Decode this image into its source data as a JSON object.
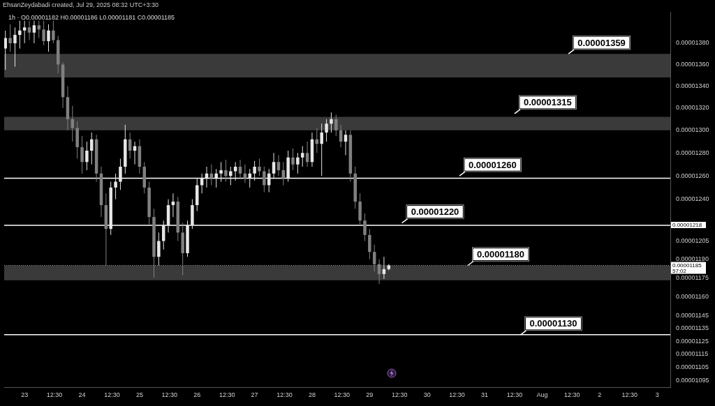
{
  "chart_data": {
    "type": "candlestick",
    "title": "EhsanZeydabadi created, Jul 29, 2025 08:32 UTC+3:30",
    "subtitle": "1h · O0.00001182 H0.00001186 L0.00001181 C0.00001185",
    "x": [
      "2025-07-22T16:00",
      "2025-07-22T18:00",
      "2025-07-22T20:00",
      "2025-07-22T22:00",
      "2025-07-23T00:00",
      "2025-07-23T02:00",
      "2025-07-23T04:00",
      "2025-07-23T06:00",
      "2025-07-23T08:00",
      "2025-07-23T10:00",
      "2025-07-23T12:00",
      "2025-07-23T14:00",
      "2025-07-23T16:00",
      "2025-07-23T18:00",
      "2025-07-23T20:00",
      "2025-07-23T22:00",
      "2025-07-24T00:00",
      "2025-07-24T02:00",
      "2025-07-24T04:00",
      "2025-07-24T06:00",
      "2025-07-24T08:00",
      "2025-07-24T10:00",
      "2025-07-24T12:00",
      "2025-07-24T14:00",
      "2025-07-24T16:00",
      "2025-07-24T18:00",
      "2025-07-24T20:00",
      "2025-07-24T22:00",
      "2025-07-25T00:00",
      "2025-07-25T02:00",
      "2025-07-25T04:00",
      "2025-07-25T06:00",
      "2025-07-25T08:00",
      "2025-07-25T10:00",
      "2025-07-25T12:00",
      "2025-07-25T14:00",
      "2025-07-25T16:00",
      "2025-07-25T18:00",
      "2025-07-25T20:00",
      "2025-07-25T22:00",
      "2025-07-26T00:00",
      "2025-07-26T02:00",
      "2025-07-26T04:00",
      "2025-07-26T06:00",
      "2025-07-26T08:00",
      "2025-07-26T10:00",
      "2025-07-26T12:00",
      "2025-07-26T14:00",
      "2025-07-26T16:00",
      "2025-07-26T18:00",
      "2025-07-26T20:00",
      "2025-07-26T22:00",
      "2025-07-27T00:00",
      "2025-07-27T02:00",
      "2025-07-27T04:00",
      "2025-07-27T06:00",
      "2025-07-27T08:00",
      "2025-07-27T10:00",
      "2025-07-27T12:00",
      "2025-07-27T14:00",
      "2025-07-27T16:00",
      "2025-07-27T18:00",
      "2025-07-27T20:00",
      "2025-07-27T22:00",
      "2025-07-28T00:00",
      "2025-07-28T02:00",
      "2025-07-28T04:00",
      "2025-07-28T06:00",
      "2025-07-28T08:00",
      "2025-07-28T10:00",
      "2025-07-28T12:00",
      "2025-07-28T14:00",
      "2025-07-28T16:00",
      "2025-07-28T18:00",
      "2025-07-28T20:00",
      "2025-07-28T22:00",
      "2025-07-29T00:00",
      "2025-07-29T02:00",
      "2025-07-29T04:00",
      "2025-07-29T06:00",
      "2025-07-29T08:00"
    ],
    "ohlc": [
      [
        1.375e-05,
        1.392e-05,
        1.355e-05,
        1.385e-05
      ],
      [
        1.385e-05,
        1.398e-05,
        1.372e-05,
        1.38e-05
      ],
      [
        1.38e-05,
        1.395e-05,
        1.358e-05,
        1.388e-05
      ],
      [
        1.388e-05,
        1.402e-05,
        1.375e-05,
        1.392e-05
      ],
      [
        1.392e-05,
        1.404e-05,
        1.38e-05,
        1.395e-05
      ],
      [
        1.395e-05,
        1.403e-05,
        1.383e-05,
        1.39e-05
      ],
      [
        1.39e-05,
        1.403e-05,
        1.38e-05,
        1.397e-05
      ],
      [
        1.397e-05,
        1.404e-05,
        1.385e-05,
        1.393e-05
      ],
      [
        1.393e-05,
        1.402e-05,
        1.378e-05,
        1.382e-05
      ],
      [
        1.382e-05,
        1.398e-05,
        1.372e-05,
        1.392e-05
      ],
      [
        1.392e-05,
        1.403e-05,
        1.38e-05,
        1.383e-05
      ],
      [
        1.383e-05,
        1.387e-05,
        1.352e-05,
        1.36e-05
      ],
      [
        1.36e-05,
        1.362e-05,
        1.32e-05,
        1.33e-05
      ],
      [
        1.33e-05,
        1.34e-05,
        1.3e-05,
        1.31e-05
      ],
      [
        1.31e-05,
        1.322e-05,
        1.29e-05,
        1.302e-05
      ],
      [
        1.302e-05,
        1.308e-05,
        1.275e-05,
        1.285e-05
      ],
      [
        1.285e-05,
        1.295e-05,
        1.262e-05,
        1.272e-05
      ],
      [
        1.272e-05,
        1.29e-05,
        1.265e-05,
        1.282e-05
      ],
      [
        1.282e-05,
        1.298e-05,
        1.27e-05,
        1.292e-05
      ],
      [
        1.292e-05,
        1.296e-05,
        1.255e-05,
        1.262e-05
      ],
      [
        1.262e-05,
        1.268e-05,
        1.225e-05,
        1.235e-05
      ],
      [
        1.235e-05,
        1.245e-05,
        1.185e-05,
        1.215e-05
      ],
      [
        1.215e-05,
        1.255e-05,
        1.21e-05,
        1.25e-05
      ],
      [
        1.25e-05,
        1.262e-05,
        1.24e-05,
        1.255e-05
      ],
      [
        1.255e-05,
        1.275e-05,
        1.248e-05,
        1.268e-05
      ],
      [
        1.268e-05,
        1.305e-05,
        1.262e-05,
        1.292e-05
      ],
      [
        1.292e-05,
        1.298e-05,
        1.275e-05,
        1.282e-05
      ],
      [
        1.282e-05,
        1.29e-05,
        1.27e-05,
        1.286e-05
      ],
      [
        1.286e-05,
        1.292e-05,
        1.262e-05,
        1.268e-05
      ],
      [
        1.268e-05,
        1.272e-05,
        1.245e-05,
        1.25e-05
      ],
      [
        1.25e-05,
        1.255e-05,
        1.218e-05,
        1.225e-05
      ],
      [
        1.225e-05,
        1.232e-05,
        1.175e-05,
        1.192e-05
      ],
      [
        1.192e-05,
        1.212e-05,
        1.185e-05,
        1.205e-05
      ],
      [
        1.205e-05,
        1.222e-05,
        1.198e-05,
        1.218e-05
      ],
      [
        1.218e-05,
        1.24e-05,
        1.212e-05,
        1.235e-05
      ],
      [
        1.235e-05,
        1.245e-05,
        1.225e-05,
        1.238e-05
      ],
      [
        1.238e-05,
        1.242e-05,
        1.205e-05,
        1.212e-05
      ],
      [
        1.212e-05,
        1.22e-05,
        1.177e-05,
        1.195e-05
      ],
      [
        1.195e-05,
        1.222e-05,
        1.192e-05,
        1.218e-05
      ],
      [
        1.218e-05,
        1.24e-05,
        1.215e-05,
        1.235e-05
      ],
      [
        1.235e-05,
        1.258e-05,
        1.23e-05,
        1.252e-05
      ],
      [
        1.252e-05,
        1.262e-05,
        1.245e-05,
        1.258e-05
      ],
      [
        1.258e-05,
        1.268e-05,
        1.25e-05,
        1.262e-05
      ],
      [
        1.262e-05,
        1.27e-05,
        1.252e-05,
        1.258e-05
      ],
      [
        1.258e-05,
        1.266e-05,
        1.25e-05,
        1.262e-05
      ],
      [
        1.262e-05,
        1.272e-05,
        1.255e-05,
        1.265e-05
      ],
      [
        1.265e-05,
        1.274e-05,
        1.255e-05,
        1.26e-05
      ],
      [
        1.26e-05,
        1.268e-05,
        1.252e-05,
        1.264e-05
      ],
      [
        1.264e-05,
        1.272e-05,
        1.256e-05,
        1.268e-05
      ],
      [
        1.268e-05,
        1.274e-05,
        1.258e-05,
        1.262e-05
      ],
      [
        1.262e-05,
        1.27e-05,
        1.254e-05,
        1.258e-05
      ],
      [
        1.258e-05,
        1.266e-05,
        1.25e-05,
        1.262e-05
      ],
      [
        1.262e-05,
        1.273e-05,
        1.256e-05,
        1.268e-05
      ],
      [
        1.268e-05,
        1.275e-05,
        1.26e-05,
        1.264e-05
      ],
      [
        1.264e-05,
        1.268e-05,
        1.246e-05,
        1.252e-05
      ],
      [
        1.252e-05,
        1.266e-05,
        1.246e-05,
        1.262e-05
      ],
      [
        1.262e-05,
        1.28e-05,
        1.258e-05,
        1.272e-05
      ],
      [
        1.272e-05,
        1.278e-05,
        1.26e-05,
        1.265e-05
      ],
      [
        1.265e-05,
        1.272e-05,
        1.252e-05,
        1.258e-05
      ],
      [
        1.258e-05,
        1.282e-05,
        1.255e-05,
        1.276e-05
      ],
      [
        1.276e-05,
        1.284e-05,
        1.265e-05,
        1.27e-05
      ],
      [
        1.27e-05,
        1.28e-05,
        1.262e-05,
        1.276e-05
      ],
      [
        1.276e-05,
        1.286e-05,
        1.268e-05,
        1.28e-05
      ],
      [
        1.28e-05,
        1.29e-05,
        1.268e-05,
        1.272e-05
      ],
      [
        1.272e-05,
        1.298e-05,
        1.268e-05,
        1.292e-05
      ],
      [
        1.292e-05,
        1.302e-05,
        1.28e-05,
        1.288e-05
      ],
      [
        1.288e-05,
        1.306e-05,
        1.26e-05,
        1.298e-05
      ],
      [
        1.298e-05,
        1.31e-05,
        1.29e-05,
        1.306e-05
      ],
      [
        1.306e-05,
        1.316e-05,
        1.298e-05,
        1.31e-05
      ],
      [
        1.31e-05,
        1.314e-05,
        1.295e-05,
        1.3e-05
      ],
      [
        1.3e-05,
        1.305e-05,
        1.285e-05,
        1.29e-05
      ],
      [
        1.29e-05,
        1.3e-05,
        1.278e-05,
        1.296e-05
      ],
      [
        1.296e-05,
        1.3e-05,
        1.255e-05,
        1.262e-05
      ],
      [
        1.262e-05,
        1.268e-05,
        1.232e-05,
        1.238e-05
      ],
      [
        1.238e-05,
        1.245e-05,
        1.218e-05,
        1.222e-05
      ],
      [
        1.222e-05,
        1.228e-05,
        1.205e-05,
        1.21e-05
      ],
      [
        1.21e-05,
        1.215e-05,
        1.19e-05,
        1.196e-05
      ],
      [
        1.196e-05,
        1.202e-05,
        1.18e-05,
        1.186e-05
      ],
      [
        1.186e-05,
        1.19e-05,
        1.17e-05,
        1.178e-05
      ],
      [
        1.178e-05,
        1.192e-05,
        1.174e-05,
        1.182e-05
      ],
      [
        1.182e-05,
        1.186e-05,
        1.181e-05,
        1.185e-05
      ]
    ],
    "colors": [
      "#e6e6e6",
      "#808080",
      "#e6e6e6",
      "#e6e6e6",
      "#e6e6e6",
      "#808080",
      "#e6e6e6",
      "#808080",
      "#808080",
      "#e6e6e6",
      "#808080",
      "#808080",
      "#808080",
      "#808080",
      "#808080",
      "#808080",
      "#808080",
      "#e6e6e6",
      "#e6e6e6",
      "#808080",
      "#808080",
      "#808080",
      "#e6e6e6",
      "#e6e6e6",
      "#e6e6e6",
      "#e6e6e6",
      "#808080",
      "#e6e6e6",
      "#808080",
      "#808080",
      "#808080",
      "#808080",
      "#e6e6e6",
      "#e6e6e6",
      "#e6e6e6",
      "#e6e6e6",
      "#808080",
      "#808080",
      "#e6e6e6",
      "#e6e6e6",
      "#e6e6e6",
      "#e6e6e6",
      "#e6e6e6",
      "#808080",
      "#e6e6e6",
      "#e6e6e6",
      "#808080",
      "#e6e6e6",
      "#e6e6e6",
      "#808080",
      "#808080",
      "#e6e6e6",
      "#e6e6e6",
      "#808080",
      "#808080",
      "#e6e6e6",
      "#e6e6e6",
      "#808080",
      "#808080",
      "#e6e6e6",
      "#808080",
      "#e6e6e6",
      "#e6e6e6",
      "#808080",
      "#e6e6e6",
      "#808080",
      "#e6e6e6",
      "#e6e6e6",
      "#e6e6e6",
      "#808080",
      "#808080",
      "#e6e6e6",
      "#808080",
      "#808080",
      "#808080",
      "#808080",
      "#808080",
      "#808080",
      "#808080",
      "#e6e6e6",
      "#e6e6e6"
    ],
    "xlim": [
      "2025-07-22T15:30",
      "2025-08-03T05:30"
    ],
    "xticks": [
      {
        "value": "2025-07-23",
        "label": "23"
      },
      {
        "value": "2025-07-23T12:30",
        "label": "12:30"
      },
      {
        "value": "2025-07-24",
        "label": "24"
      },
      {
        "value": "2025-07-24T12:30",
        "label": "12:30"
      },
      {
        "value": "2025-07-25",
        "label": "25"
      },
      {
        "value": "2025-07-25T12:30",
        "label": "12:30"
      },
      {
        "value": "2025-07-26",
        "label": "26"
      },
      {
        "value": "2025-07-26T12:30",
        "label": "12:30"
      },
      {
        "value": "2025-07-27",
        "label": "27"
      },
      {
        "value": "2025-07-27T12:30",
        "label": "12:30"
      },
      {
        "value": "2025-07-28",
        "label": "28"
      },
      {
        "value": "2025-07-28T12:30",
        "label": "12:30"
      },
      {
        "value": "2025-07-29",
        "label": "29"
      },
      {
        "value": "2025-07-29T12:30",
        "label": "12:30"
      },
      {
        "value": "2025-07-30",
        "label": "30"
      },
      {
        "value": "2025-07-30T12:30",
        "label": "12:30"
      },
      {
        "value": "2025-07-31",
        "label": "31"
      },
      {
        "value": "2025-07-31T12:30",
        "label": "12:30"
      },
      {
        "value": "2025-08-01",
        "label": "Aug"
      },
      {
        "value": "2025-08-01T12:30",
        "label": "12:30"
      },
      {
        "value": "2025-08-02",
        "label": "2"
      },
      {
        "value": "2025-08-02T12:30",
        "label": "12:30"
      },
      {
        "value": "2025-08-03",
        "label": "3"
      }
    ],
    "log": "y",
    "ylim": [
      1.09e-05,
      1.41e-05
    ],
    "yticks": [
      {
        "value": 1.38e-05,
        "label": "0.00001380"
      },
      {
        "value": 1.36e-05,
        "label": "0.00001360"
      },
      {
        "value": 1.34e-05,
        "label": "0.00001340"
      },
      {
        "value": 1.32e-05,
        "label": "0.00001320"
      },
      {
        "value": 1.3e-05,
        "label": "0.00001300"
      },
      {
        "value": 1.28e-05,
        "label": "0.00001280"
      },
      {
        "value": 1.26e-05,
        "label": "0.00001260"
      },
      {
        "value": 1.24e-05,
        "label": "0.00001240"
      },
      {
        "value": 1.205e-05,
        "label": "0.00001205"
      },
      {
        "value": 1.19e-05,
        "label": "0.00001190"
      },
      {
        "value": 1.175e-05,
        "label": "0.00001175"
      },
      {
        "value": 1.16e-05,
        "label": "0.00001160"
      },
      {
        "value": 1.145e-05,
        "label": "0.00001145"
      },
      {
        "value": 1.135e-05,
        "label": "0.00001135"
      },
      {
        "value": 1.125e-05,
        "label": "0.00001125"
      },
      {
        "value": 1.115e-05,
        "label": "0.00001115"
      },
      {
        "value": 1.105e-05,
        "label": "0.00001105"
      },
      {
        "value": 1.095e-05,
        "label": "0.00001095"
      }
    ],
    "bands": [
      {
        "axis": "y",
        "from": 1.348e-05,
        "to": 1.37e-05,
        "color": "#3a3a3a"
      },
      {
        "axis": "y",
        "from": 1.3e-05,
        "to": 1.312e-05,
        "color": "#3a3a3a"
      },
      {
        "axis": "y",
        "from": 1.173e-05,
        "to": 1.185e-05,
        "color": "#3a3a3a"
      }
    ],
    "ref_lines": [
      {
        "axis": "y",
        "value": 1.218e-05,
        "label": "0.00001218",
        "color": "#ffffff"
      },
      {
        "axis": "y",
        "value": 1.258e-05,
        "color": "#ffffff"
      },
      {
        "axis": "y",
        "value": 1.13e-05,
        "color": "#ffffff"
      },
      {
        "axis": "y",
        "value": 1.185e-05,
        "label": "0.00001185\n57:02",
        "color": "#9a9a9a",
        "line_style": "dotted"
      }
    ],
    "annotations": [
      {
        "text": "0.00001359",
        "x": "2025-08-01T11:00",
        "y": 1.37e-05
      },
      {
        "text": "0.00001315",
        "x": "2025-07-31T12:30",
        "y": 1.315e-05
      },
      {
        "text": "0.00001260",
        "x": "2025-07-30T13:30",
        "y": 1.26e-05
      },
      {
        "text": "0.00001220",
        "x": "2025-07-29T13:30",
        "y": 1.22e-05
      },
      {
        "text": "0.00001180",
        "x": "2025-07-30T17:00",
        "y": 1.185e-05
      },
      {
        "text": "0.00001130",
        "x": "2025-07-31T15:00",
        "y": 1.13e-05
      }
    ]
  }
}
